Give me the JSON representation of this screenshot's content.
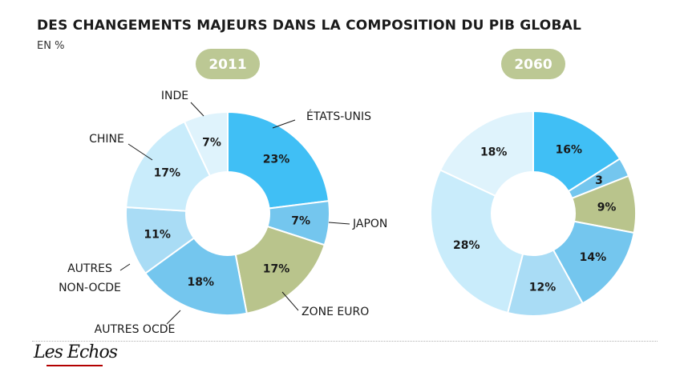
{
  "header": {
    "title": "DES CHANGEMENTS MAJEURS DANS LA COMPOSITION DU PIB GLOBAL",
    "subtitle": "EN %"
  },
  "logo": {
    "text": "Les Echos"
  },
  "colors": {
    "blue_strong": "#40bff5",
    "blue_medium": "#74c6ee",
    "blue_light": "#a9dcf5",
    "blue_pale": "#c9ecfb",
    "blue_palest": "#dff3fc",
    "green": "#b9c48c",
    "badge": "#bcc894"
  },
  "chart_data": [
    {
      "type": "pie",
      "title": "2011",
      "slices": [
        {
          "label": "ÉTATS-UNIS",
          "value": 23,
          "value_label": "23%",
          "color": "#40bff5"
        },
        {
          "label": "JAPON",
          "value": 7,
          "value_label": "7%",
          "color": "#74c6ee"
        },
        {
          "label": "ZONE EURO",
          "value": 17,
          "value_label": "17%",
          "color": "#b9c48c"
        },
        {
          "label": "AUTRES OCDE",
          "value": 18,
          "value_label": "18%",
          "color": "#74c6ee"
        },
        {
          "label": "AUTRES NON-OCDE",
          "value": 11,
          "value_label": "11%",
          "color": "#a9dcf5"
        },
        {
          "label": "CHINE",
          "value": 17,
          "value_label": "17%",
          "color": "#c9ecfb"
        },
        {
          "label": "INDE",
          "value": 7,
          "value_label": "7%",
          "color": "#dff3fc"
        }
      ]
    },
    {
      "type": "pie",
      "title": "2060",
      "slices": [
        {
          "label": "ÉTATS-UNIS",
          "value": 16,
          "value_label": "16%",
          "color": "#40bff5"
        },
        {
          "label": "JAPON",
          "value": 3,
          "value_label": "3",
          "color": "#74c6ee"
        },
        {
          "label": "ZONE EURO",
          "value": 9,
          "value_label": "9%",
          "color": "#b9c48c"
        },
        {
          "label": "AUTRES OCDE",
          "value": 14,
          "value_label": "14%",
          "color": "#74c6ee"
        },
        {
          "label": "AUTRES NON-OCDE",
          "value": 12,
          "value_label": "12%",
          "color": "#a9dcf5"
        },
        {
          "label": "CHINE",
          "value": 28,
          "value_label": "28%",
          "color": "#c9ecfb"
        },
        {
          "label": "INDE",
          "value": 18,
          "value_label": "18%",
          "color": "#dff3fc"
        }
      ]
    }
  ]
}
